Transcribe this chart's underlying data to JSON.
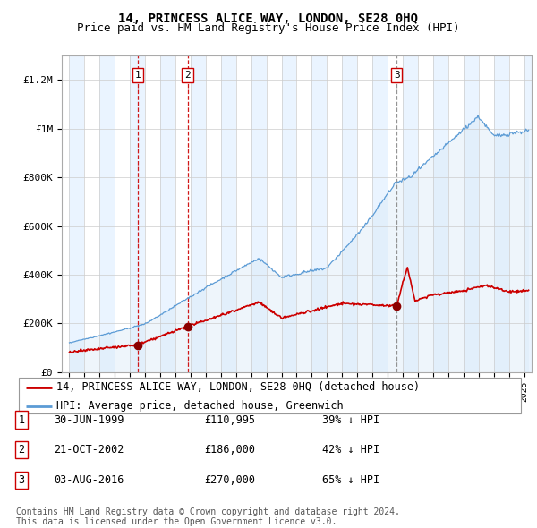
{
  "title": "14, PRINCESS ALICE WAY, LONDON, SE28 0HQ",
  "subtitle": "Price paid vs. HM Land Registry's House Price Index (HPI)",
  "ylabel_ticks": [
    "£0",
    "£200K",
    "£400K",
    "£600K",
    "£800K",
    "£1M",
    "£1.2M"
  ],
  "ytick_values": [
    0,
    200000,
    400000,
    600000,
    800000,
    1000000,
    1200000
  ],
  "ylim": [
    0,
    1300000
  ],
  "xlim_start": 1994.5,
  "xlim_end": 2025.5,
  "sale_dates": [
    1999.5,
    2002.8,
    2016.6
  ],
  "sale_prices": [
    110995,
    186000,
    270000
  ],
  "sale_labels": [
    "1",
    "2",
    "3"
  ],
  "sale_date_strs": [
    "30-JUN-1999",
    "21-OCT-2002",
    "03-AUG-2016"
  ],
  "sale_price_strs": [
    "£110,995",
    "£186,000",
    "£270,000"
  ],
  "sale_pct_strs": [
    "39% ↓ HPI",
    "42% ↓ HPI",
    "65% ↓ HPI"
  ],
  "vline_styles": [
    "red_dashed",
    "red_dashed",
    "gray_dashed"
  ],
  "hpi_color": "#5b9bd5",
  "hpi_fill_color": "#d6e8f7",
  "sale_line_color": "#cc0000",
  "sale_marker_color": "#8b0000",
  "vline_red_color": "#cc0000",
  "vline_gray_color": "#888888",
  "bg_shade_color": "#ddeeff",
  "legend_label_property": "14, PRINCESS ALICE WAY, LONDON, SE28 0HQ (detached house)",
  "legend_label_hpi": "HPI: Average price, detached house, Greenwich",
  "footnote": "Contains HM Land Registry data © Crown copyright and database right 2024.\nThis data is licensed under the Open Government Licence v3.0.",
  "title_fontsize": 10,
  "subtitle_fontsize": 9,
  "tick_fontsize": 8,
  "legend_fontsize": 8.5,
  "table_fontsize": 8.5,
  "footnote_fontsize": 7
}
